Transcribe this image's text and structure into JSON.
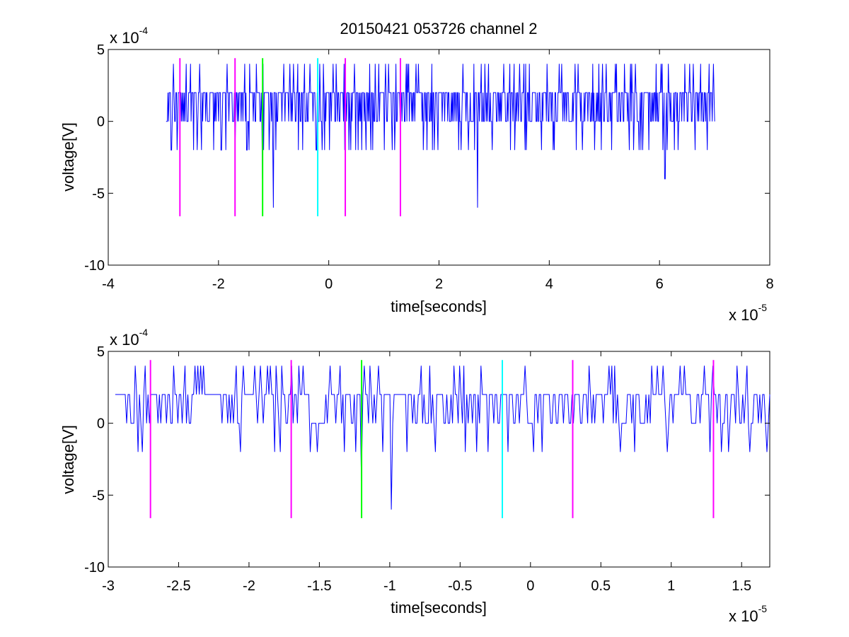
{
  "chart_data": [
    {
      "type": "line",
      "title": "20150421 053726 channel 2",
      "xlabel": "time[seconds]",
      "ylabel": "voltage[V]",
      "x_multiplier": "x 10",
      "x_exponent": "-5",
      "y_multiplier": "x 10",
      "y_exponent": "-4",
      "xlim": [
        -4,
        8
      ],
      "ylim": [
        -10,
        5
      ],
      "xticks": [
        -4,
        -2,
        0,
        2,
        4,
        6,
        8
      ],
      "xtick_labels": [
        "-4",
        "-2",
        "0",
        "2",
        "4",
        "6",
        "8"
      ],
      "yticks": [
        -10,
        -5,
        0,
        5
      ],
      "ytick_labels": [
        "-10",
        "-5",
        "0",
        "5"
      ],
      "grid": false,
      "series": [
        {
          "color": "#0000ff",
          "x_range": [
            -2.95,
            7.0
          ],
          "levels": [
            -6,
            -4,
            -2,
            0,
            2,
            4
          ],
          "spikes": [
            {
              "x": -1.0,
              "y": -6
            },
            {
              "x": 2.7,
              "y": -6
            },
            {
              "x": 6.1,
              "y": -4
            },
            {
              "x": -1.2,
              "y": -4
            }
          ]
        }
      ],
      "markers": [
        {
          "x": -2.7,
          "y": [
            -6.6,
            4.4
          ],
          "color": "#ff00ff"
        },
        {
          "x": -1.7,
          "y": [
            -6.6,
            4.4
          ],
          "color": "#ff00ff"
        },
        {
          "x": -1.2,
          "y": [
            -6.6,
            4.4
          ],
          "color": "#00ff00"
        },
        {
          "x": -0.2,
          "y": [
            -6.6,
            4.4
          ],
          "color": "#00ffff"
        },
        {
          "x": 0.3,
          "y": [
            -6.6,
            4.4
          ],
          "color": "#ff00ff"
        },
        {
          "x": 1.3,
          "y": [
            -6.6,
            4.4
          ],
          "color": "#ff00ff"
        }
      ]
    },
    {
      "type": "line",
      "xlabel": "time[seconds]",
      "ylabel": "voltage[V]",
      "x_multiplier": "x 10",
      "x_exponent": "-5",
      "y_multiplier": "x 10",
      "y_exponent": "-4",
      "xlim": [
        -3.0,
        1.7
      ],
      "ylim": [
        -10,
        5
      ],
      "xticks": [
        -3,
        -2.5,
        -2,
        -1.5,
        -1,
        -0.5,
        0,
        0.5,
        1,
        1.5
      ],
      "xtick_labels": [
        "-3",
        "-2.5",
        "-2",
        "-1.5",
        "-1",
        "-0.5",
        "0",
        "0.5",
        "1",
        "1.5"
      ],
      "yticks": [
        -10,
        -5,
        0,
        5
      ],
      "ytick_labels": [
        "-10",
        "-5",
        "0",
        "5"
      ],
      "grid": false,
      "series": [
        {
          "color": "#0000ff",
          "x_range": [
            -2.95,
            1.7
          ],
          "levels": [
            -6,
            -4,
            -2,
            0,
            2,
            4
          ],
          "spikes": [
            {
              "x": -0.99,
              "y": -6
            },
            {
              "x": -1.2,
              "y": -4
            }
          ]
        }
      ],
      "markers": [
        {
          "x": -2.7,
          "y": [
            -6.6,
            4.4
          ],
          "color": "#ff00ff"
        },
        {
          "x": -1.7,
          "y": [
            -6.6,
            4.4
          ],
          "color": "#ff00ff"
        },
        {
          "x": -1.2,
          "y": [
            -6.6,
            4.4
          ],
          "color": "#00ff00"
        },
        {
          "x": -0.2,
          "y": [
            -6.6,
            4.4
          ],
          "color": "#00ffff"
        },
        {
          "x": 0.3,
          "y": [
            -6.6,
            4.4
          ],
          "color": "#ff00ff"
        },
        {
          "x": 1.3,
          "y": [
            -6.6,
            4.4
          ],
          "color": "#ff00ff"
        }
      ]
    }
  ]
}
